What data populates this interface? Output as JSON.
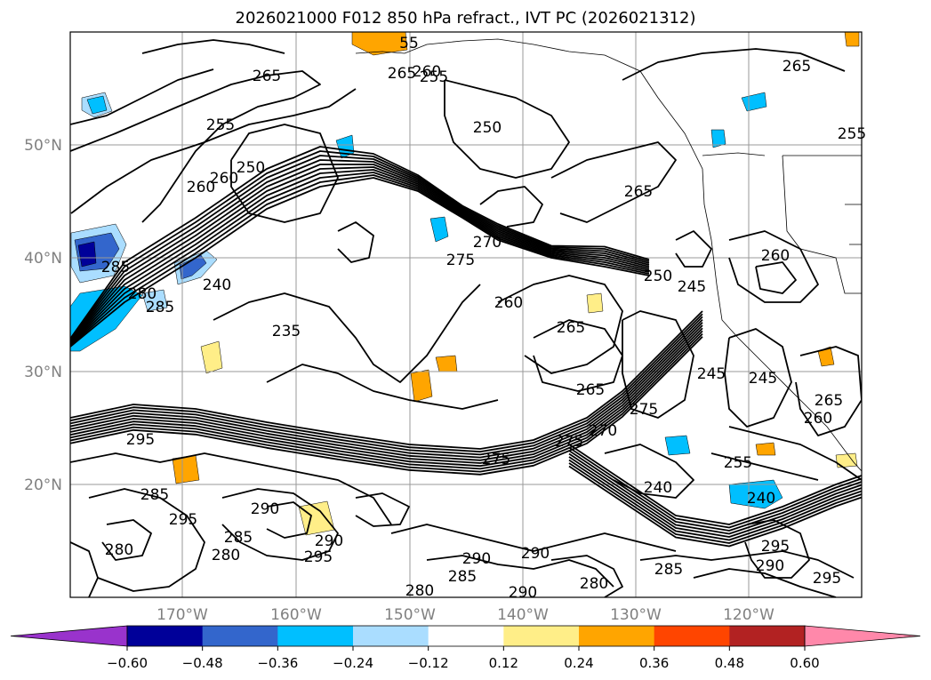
{
  "title": "2026021000 F012 850 hPa refract., IVT PC (2026021312)",
  "lat_labels": [
    "50°N",
    "40°N",
    "30°N",
    "20°N"
  ],
  "lon_labels": [
    "170°W",
    "160°W",
    "150°W",
    "140°W",
    "130°W",
    "120°W"
  ],
  "colorbar": {
    "ticks": [
      "−0.60",
      "−0.48",
      "−0.36",
      "−0.24",
      "−0.12",
      "0.12",
      "0.24",
      "0.36",
      "0.48",
      "0.60"
    ],
    "colors": [
      "#9933cc",
      "#000099",
      "#3366cc",
      "#00bfff",
      "#aaddff",
      "#ffffff",
      "#ffee88",
      "#ffa500",
      "#ff4500",
      "#b22222",
      "#ff88aa"
    ]
  },
  "contour_labels": [
    "265",
    "260",
    "255",
    "250",
    "260",
    "285",
    "280",
    "285",
    "240",
    "235",
    "265",
    "260",
    "250",
    "270",
    "275",
    "265",
    "260",
    "265",
    "265",
    "250",
    "245",
    "260",
    "245",
    "245",
    "260",
    "265",
    "275",
    "270",
    "275",
    "275",
    "295",
    "285",
    "295",
    "280",
    "285",
    "280",
    "290",
    "290",
    "295",
    "280",
    "285",
    "290",
    "290",
    "290",
    "280",
    "285",
    "295",
    "255",
    "240",
    "240",
    "295",
    "290",
    "255",
    "55",
    "265",
    "255"
  ]
}
